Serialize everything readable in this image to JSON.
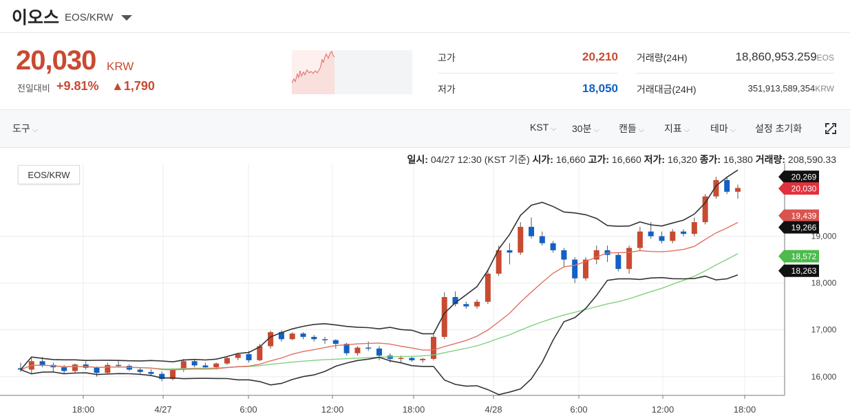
{
  "header": {
    "coin_name": "이오스",
    "pair": "EOS/KRW"
  },
  "summary": {
    "price": "20,030",
    "price_unit": "KRW",
    "change_label": "전일대비",
    "change_pct": "+9.81%",
    "change_abs": "▲1,790",
    "high_label": "고가",
    "high_value": "20,210",
    "low_label": "저가",
    "low_value": "18,050",
    "volume_label": "거래량(24H)",
    "volume_value": "18,860,953.259",
    "volume_unit": "EOS",
    "amount_label": "거래대금(24H)",
    "amount_value": "351,913,589,354",
    "amount_unit": "KRW"
  },
  "toolbar": {
    "tools": "도구",
    "timezone": "KST",
    "interval": "30분",
    "candle": "캔들",
    "indicator": "지표",
    "theme": "테마",
    "reset": "설정 초기화"
  },
  "info": {
    "datetime_label": "일시:",
    "datetime": "04/27 12:30 (KST 기준)",
    "open_label": "시가:",
    "open": "16,660",
    "high_label": "고가:",
    "high": "16,660",
    "low_label": "저가:",
    "low": "16,320",
    "close_label": "종가:",
    "close": "16,380",
    "vol_label": "거래량:",
    "vol": "208,590.33"
  },
  "chart_pair": "EOS/KRW",
  "colors": {
    "up": "#c84a31",
    "down": "#1261c4",
    "ma_red": "#e07060",
    "ma_green": "#7fd07f",
    "band": "#333333"
  },
  "chart_data": {
    "type": "candlestick",
    "x_tick_labels": [
      "18:00",
      "4/27",
      "6:00",
      "12:00",
      "18:00",
      "4/28",
      "6:00",
      "12:00",
      "18:00"
    ],
    "y_tick_labels": [
      "16,000",
      "17,000",
      "18,000",
      "19,000"
    ],
    "ylim": [
      15600,
      20550
    ],
    "price_tags": [
      {
        "label": "20,269",
        "value": 20269,
        "color": "#111111"
      },
      {
        "label": "20,030",
        "value": 20030,
        "color": "#e0323c"
      },
      {
        "label": "19,439",
        "value": 19439,
        "color": "#d9534f"
      },
      {
        "label": "19,266",
        "value": 19266,
        "color": "#111111"
      },
      {
        "label": "18,572",
        "value": 18572,
        "color": "#4cbb4c"
      },
      {
        "label": "18,263",
        "value": 18263,
        "color": "#111111"
      }
    ],
    "candles": [
      [
        16180,
        16300,
        16100,
        16150
      ],
      [
        16150,
        16400,
        16050,
        16330
      ],
      [
        16330,
        16420,
        16200,
        16250
      ],
      [
        16250,
        16300,
        16100,
        16200
      ],
      [
        16200,
        16250,
        16050,
        16120
      ],
      [
        16120,
        16280,
        16080,
        16260
      ],
      [
        16260,
        16330,
        16150,
        16190
      ],
      [
        16190,
        16220,
        16000,
        16080
      ],
      [
        16080,
        16300,
        16050,
        16250
      ],
      [
        16250,
        16350,
        16200,
        16230
      ],
      [
        16230,
        16260,
        16120,
        16150
      ],
      [
        16150,
        16200,
        16050,
        16100
      ],
      [
        16100,
        16160,
        16020,
        16060
      ],
      [
        16060,
        16110,
        15900,
        15950
      ],
      [
        15950,
        16180,
        15920,
        16150
      ],
      [
        16150,
        16380,
        16100,
        16330
      ],
      [
        16330,
        16360,
        16200,
        16240
      ],
      [
        16240,
        16300,
        16180,
        16200
      ],
      [
        16200,
        16300,
        16150,
        16280
      ],
      [
        16280,
        16420,
        16250,
        16400
      ],
      [
        16400,
        16500,
        16350,
        16480
      ],
      [
        16480,
        16550,
        16300,
        16350
      ],
      [
        16350,
        16700,
        16330,
        16650
      ],
      [
        16650,
        16980,
        16600,
        16950
      ],
      [
        16950,
        16990,
        16750,
        16800
      ],
      [
        16800,
        16950,
        16780,
        16920
      ],
      [
        16920,
        16950,
        16800,
        16850
      ],
      [
        16850,
        16890,
        16750,
        16800
      ],
      [
        16800,
        16850,
        16700,
        16780
      ],
      [
        16780,
        16800,
        16600,
        16700
      ],
      [
        16700,
        16720,
        16450,
        16500
      ],
      [
        16500,
        16650,
        16450,
        16620
      ],
      [
        16620,
        16750,
        16550,
        16600
      ],
      [
        16600,
        16650,
        16350,
        16450
      ],
      [
        16450,
        16500,
        16300,
        16380
      ],
      [
        16380,
        16450,
        16300,
        16400
      ],
      [
        16400,
        16420,
        16320,
        16350
      ],
      [
        16350,
        16400,
        16300,
        16380
      ],
      [
        16380,
        16900,
        16350,
        16850
      ],
      [
        16850,
        17800,
        16800,
        17700
      ],
      [
        17700,
        17820,
        17500,
        17550
      ],
      [
        17550,
        17600,
        17450,
        17500
      ],
      [
        17500,
        17650,
        17450,
        17600
      ],
      [
        17600,
        18300,
        17550,
        18200
      ],
      [
        18200,
        18800,
        18150,
        18700
      ],
      [
        18700,
        18850,
        18400,
        18650
      ],
      [
        18650,
        19300,
        18600,
        19200
      ],
      [
        19200,
        19400,
        18950,
        19000
      ],
      [
        19000,
        19100,
        18800,
        18850
      ],
      [
        18850,
        18900,
        18650,
        18700
      ],
      [
        18700,
        18750,
        18350,
        18500
      ],
      [
        18500,
        18550,
        18000,
        18100
      ],
      [
        18100,
        18550,
        18050,
        18500
      ],
      [
        18500,
        18800,
        18400,
        18700
      ],
      [
        18700,
        18800,
        18450,
        18600
      ],
      [
        18600,
        18650,
        18250,
        18300
      ],
      [
        18300,
        18800,
        18200,
        18750
      ],
      [
        18750,
        19200,
        18700,
        19100
      ],
      [
        19100,
        19300,
        18950,
        19000
      ],
      [
        19000,
        19100,
        18850,
        18900
      ],
      [
        18900,
        19150,
        18850,
        19100
      ],
      [
        19100,
        19150,
        19000,
        19050
      ],
      [
        19050,
        19400,
        19000,
        19300
      ],
      [
        19300,
        19900,
        19250,
        19850
      ],
      [
        19850,
        20270,
        19800,
        20200
      ],
      [
        20200,
        20250,
        19900,
        19950
      ],
      [
        19950,
        20100,
        19800,
        20030
      ]
    ]
  }
}
